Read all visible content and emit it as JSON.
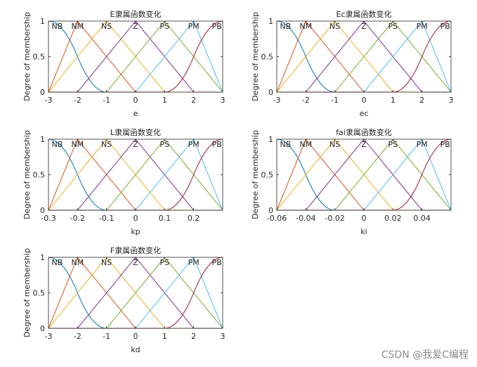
{
  "watermark": "CSDN @我爱C编程",
  "colors": {
    "NB": "#0072BD",
    "NM": "#D95319",
    "NS": "#EDB120",
    "Z": "#7E2F8E",
    "PS": "#77AC30",
    "PM": "#4DBEEE",
    "PB": "#A2142F",
    "axis": "#262626",
    "background": "#ffffff"
  },
  "chart_data": [
    {
      "type": "line",
      "title": "E隶属函数变化",
      "xlabel": "e",
      "ylabel": "Degree of membership",
      "xlim": [
        -3,
        3
      ],
      "ylim": [
        0,
        1
      ],
      "xticks": [
        -3,
        -2,
        -1,
        0,
        1,
        2,
        3
      ],
      "xtick_labels": [
        "-3",
        "-2",
        "-1",
        "0",
        "1",
        "2",
        "3"
      ],
      "yticks": [
        0,
        0.5,
        1
      ],
      "ytick_labels": [
        "0",
        "0.5",
        "1"
      ],
      "series": [
        {
          "name": "NB",
          "color": "#0072BD",
          "kind": "zmf",
          "params": [
            -3,
            -1
          ]
        },
        {
          "name": "NM",
          "color": "#D95319",
          "kind": "trimf",
          "params": [
            -3,
            -2,
            0
          ]
        },
        {
          "name": "NS",
          "color": "#EDB120",
          "kind": "trimf",
          "params": [
            -3,
            -1,
            1
          ]
        },
        {
          "name": "Z",
          "color": "#7E2F8E",
          "kind": "trimf",
          "params": [
            -2,
            0,
            2
          ]
        },
        {
          "name": "PS",
          "color": "#77AC30",
          "kind": "trimf",
          "params": [
            -1,
            1,
            3
          ]
        },
        {
          "name": "PM",
          "color": "#4DBEEE",
          "kind": "trimf",
          "params": [
            0,
            2,
            3
          ]
        },
        {
          "name": "PB",
          "color": "#A2142F",
          "kind": "smf",
          "params": [
            1,
            3
          ]
        }
      ],
      "label_positions": [
        -2.7,
        -2,
        -1,
        0,
        1,
        2,
        2.8
      ]
    },
    {
      "type": "line",
      "title": "Ec隶属函数变化",
      "xlabel": "ec",
      "ylabel": "Degree of membership",
      "xlim": [
        -3,
        3
      ],
      "ylim": [
        0,
        1
      ],
      "xticks": [
        -3,
        -2,
        -1,
        0,
        1,
        2,
        3
      ],
      "xtick_labels": [
        "-3",
        "-2",
        "-1",
        "0",
        "1",
        "2",
        "3"
      ],
      "yticks": [
        0,
        0.5,
        1
      ],
      "ytick_labels": [
        "0",
        "0.5",
        "1"
      ],
      "series": [
        {
          "name": "NB",
          "color": "#0072BD",
          "kind": "zmf",
          "params": [
            -3,
            -1
          ]
        },
        {
          "name": "NM",
          "color": "#D95319",
          "kind": "trimf",
          "params": [
            -3,
            -2,
            0
          ]
        },
        {
          "name": "NS",
          "color": "#EDB120",
          "kind": "trimf",
          "params": [
            -3,
            -1,
            1
          ]
        },
        {
          "name": "Z",
          "color": "#7E2F8E",
          "kind": "trimf",
          "params": [
            -2,
            0,
            2
          ]
        },
        {
          "name": "PS",
          "color": "#77AC30",
          "kind": "trimf",
          "params": [
            -1,
            1,
            3
          ]
        },
        {
          "name": "PM",
          "color": "#4DBEEE",
          "kind": "trimf",
          "params": [
            0,
            2,
            3
          ]
        },
        {
          "name": "PB",
          "color": "#A2142F",
          "kind": "smf",
          "params": [
            1,
            3
          ]
        }
      ],
      "label_positions": [
        -2.7,
        -2,
        -1,
        0,
        1,
        2,
        2.8
      ]
    },
    {
      "type": "line",
      "title": "L隶属函数变化",
      "xlabel": "kp",
      "ylabel": "Degree of membership",
      "xlim": [
        -0.3,
        0.3
      ],
      "ylim": [
        0,
        1
      ],
      "xticks": [
        -0.3,
        -0.2,
        -0.1,
        0,
        0.1,
        0.2
      ],
      "xtick_labels": [
        "-0.3",
        "-0.2",
        "-0.1",
        "0",
        "0.1",
        "0.2"
      ],
      "yticks": [
        0,
        0.5,
        1
      ],
      "ytick_labels": [
        "0",
        "0.5",
        "1"
      ],
      "series": [
        {
          "name": "NB",
          "color": "#0072BD",
          "kind": "zmf",
          "params": [
            -0.3,
            -0.1
          ]
        },
        {
          "name": "NM",
          "color": "#D95319",
          "kind": "trimf",
          "params": [
            -0.3,
            -0.2,
            0
          ]
        },
        {
          "name": "NS",
          "color": "#EDB120",
          "kind": "trimf",
          "params": [
            -0.3,
            -0.1,
            0.1
          ]
        },
        {
          "name": "Z",
          "color": "#7E2F8E",
          "kind": "trimf",
          "params": [
            -0.2,
            0,
            0.2
          ]
        },
        {
          "name": "PS",
          "color": "#77AC30",
          "kind": "trimf",
          "params": [
            -0.1,
            0.1,
            0.3
          ]
        },
        {
          "name": "PM",
          "color": "#4DBEEE",
          "kind": "trimf",
          "params": [
            0,
            0.2,
            0.3
          ]
        },
        {
          "name": "PB",
          "color": "#A2142F",
          "kind": "smf",
          "params": [
            0.1,
            0.3
          ]
        }
      ],
      "label_positions": [
        -0.27,
        -0.2,
        -0.1,
        0,
        0.1,
        0.2,
        0.28
      ]
    },
    {
      "type": "line",
      "title": "fai隶属函数变化",
      "xlabel": "ki",
      "ylabel": "Degree of membership",
      "xlim": [
        -0.06,
        0.06
      ],
      "ylim": [
        0,
        1
      ],
      "xticks": [
        -0.06,
        -0.04,
        -0.02,
        0,
        0.02,
        0.04
      ],
      "xtick_labels": [
        "-0.06",
        "-0.04",
        "-0.02",
        "0",
        "0.02",
        "0.04"
      ],
      "yticks": [
        0,
        0.5,
        1
      ],
      "ytick_labels": [
        "0",
        "0.5",
        "1"
      ],
      "series": [
        {
          "name": "NB",
          "color": "#0072BD",
          "kind": "zmf",
          "params": [
            -0.06,
            -0.02
          ]
        },
        {
          "name": "NM",
          "color": "#D95319",
          "kind": "trimf",
          "params": [
            -0.06,
            -0.04,
            0
          ]
        },
        {
          "name": "NS",
          "color": "#EDB120",
          "kind": "trimf",
          "params": [
            -0.06,
            -0.02,
            0.02
          ]
        },
        {
          "name": "Z",
          "color": "#7E2F8E",
          "kind": "trimf",
          "params": [
            -0.04,
            0,
            0.04
          ]
        },
        {
          "name": "PS",
          "color": "#77AC30",
          "kind": "trimf",
          "params": [
            -0.02,
            0.02,
            0.06
          ]
        },
        {
          "name": "PM",
          "color": "#4DBEEE",
          "kind": "trimf",
          "params": [
            0,
            0.04,
            0.06
          ]
        },
        {
          "name": "PB",
          "color": "#A2142F",
          "kind": "smf",
          "params": [
            0.02,
            0.06
          ]
        }
      ],
      "label_positions": [
        -0.054,
        -0.04,
        -0.02,
        0,
        0.02,
        0.04,
        0.056
      ]
    },
    {
      "type": "line",
      "title": "F隶属函数变化",
      "xlabel": "kd",
      "ylabel": "Degree of membership",
      "xlim": [
        -3,
        3
      ],
      "ylim": [
        0,
        1
      ],
      "xticks": [
        -3,
        -2,
        -1,
        0,
        1,
        2,
        3
      ],
      "xtick_labels": [
        "-3",
        "-2",
        "-1",
        "0",
        "1",
        "2",
        "3"
      ],
      "yticks": [
        0,
        0.5,
        1
      ],
      "ytick_labels": [
        "0",
        "0.5",
        "1"
      ],
      "series": [
        {
          "name": "NB",
          "color": "#0072BD",
          "kind": "zmf",
          "params": [
            -3,
            -1
          ]
        },
        {
          "name": "NM",
          "color": "#D95319",
          "kind": "trimf",
          "params": [
            -3,
            -2,
            0
          ]
        },
        {
          "name": "NS",
          "color": "#EDB120",
          "kind": "trimf",
          "params": [
            -3,
            -1,
            1
          ]
        },
        {
          "name": "Z",
          "color": "#7E2F8E",
          "kind": "trimf",
          "params": [
            -2,
            0,
            2
          ]
        },
        {
          "name": "PS",
          "color": "#77AC30",
          "kind": "trimf",
          "params": [
            -1,
            1,
            3
          ]
        },
        {
          "name": "PM",
          "color": "#4DBEEE",
          "kind": "trimf",
          "params": [
            0,
            2,
            3
          ]
        },
        {
          "name": "PB",
          "color": "#A2142F",
          "kind": "smf",
          "params": [
            1,
            3
          ]
        }
      ],
      "label_positions": [
        -2.7,
        -2,
        -1,
        0,
        1,
        2,
        2.8
      ]
    }
  ]
}
